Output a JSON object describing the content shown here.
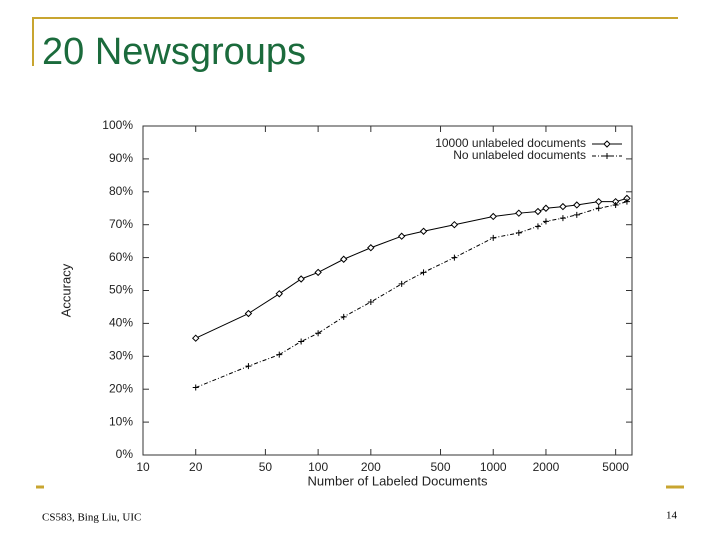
{
  "slide": {
    "title": "20 Newsgroups",
    "footer": "CS583, Bing Liu, UIC",
    "page_number": "14"
  },
  "chart_data": {
    "type": "line",
    "xlabel": "Number of Labeled Documents",
    "ylabel": "Accuracy",
    "x": [
      20,
      40,
      60,
      80,
      100,
      140,
      200,
      300,
      400,
      600,
      1000,
      1400,
      1800,
      2000,
      2500,
      3000,
      4000,
      5000,
      5800
    ],
    "series": [
      {
        "name": "10000 unlabeled documents",
        "color": "#000000",
        "marker": "diamond",
        "line_style": "solid",
        "values": [
          35.5,
          43,
          49,
          53.5,
          55.5,
          59.5,
          63,
          66.5,
          68,
          70,
          72.5,
          73.5,
          74,
          75,
          75.5,
          76,
          77,
          77,
          78
        ]
      },
      {
        "name": "No unlabeled documents",
        "color": "#000000",
        "marker": "plus",
        "line_style": "dashed",
        "values": [
          20.5,
          27,
          30.5,
          34.5,
          37,
          42,
          46.5,
          52,
          55.5,
          60,
          66,
          67.5,
          69.5,
          71,
          72,
          73,
          75,
          76,
          77
        ]
      }
    ],
    "xscale": "log",
    "xlim": [
      10,
      6200
    ],
    "xticks": [
      10,
      20,
      50,
      100,
      200,
      500,
      1000,
      2000,
      5000
    ],
    "ylim": [
      0,
      100
    ],
    "yticks": [
      {
        "value": 0,
        "label": "0%"
      },
      {
        "value": 10,
        "label": "10%"
      },
      {
        "value": 20,
        "label": "20%"
      },
      {
        "value": 30,
        "label": "30%"
      },
      {
        "value": 40,
        "label": "40%"
      },
      {
        "value": 50,
        "label": "50%"
      },
      {
        "value": 60,
        "label": "60%"
      },
      {
        "value": 70,
        "label": "70%"
      },
      {
        "value": 80,
        "label": "80%"
      },
      {
        "value": 90,
        "label": "90%"
      },
      {
        "value": 100,
        "label": "100%"
      }
    ],
    "grid": false,
    "legend": "top-right"
  }
}
